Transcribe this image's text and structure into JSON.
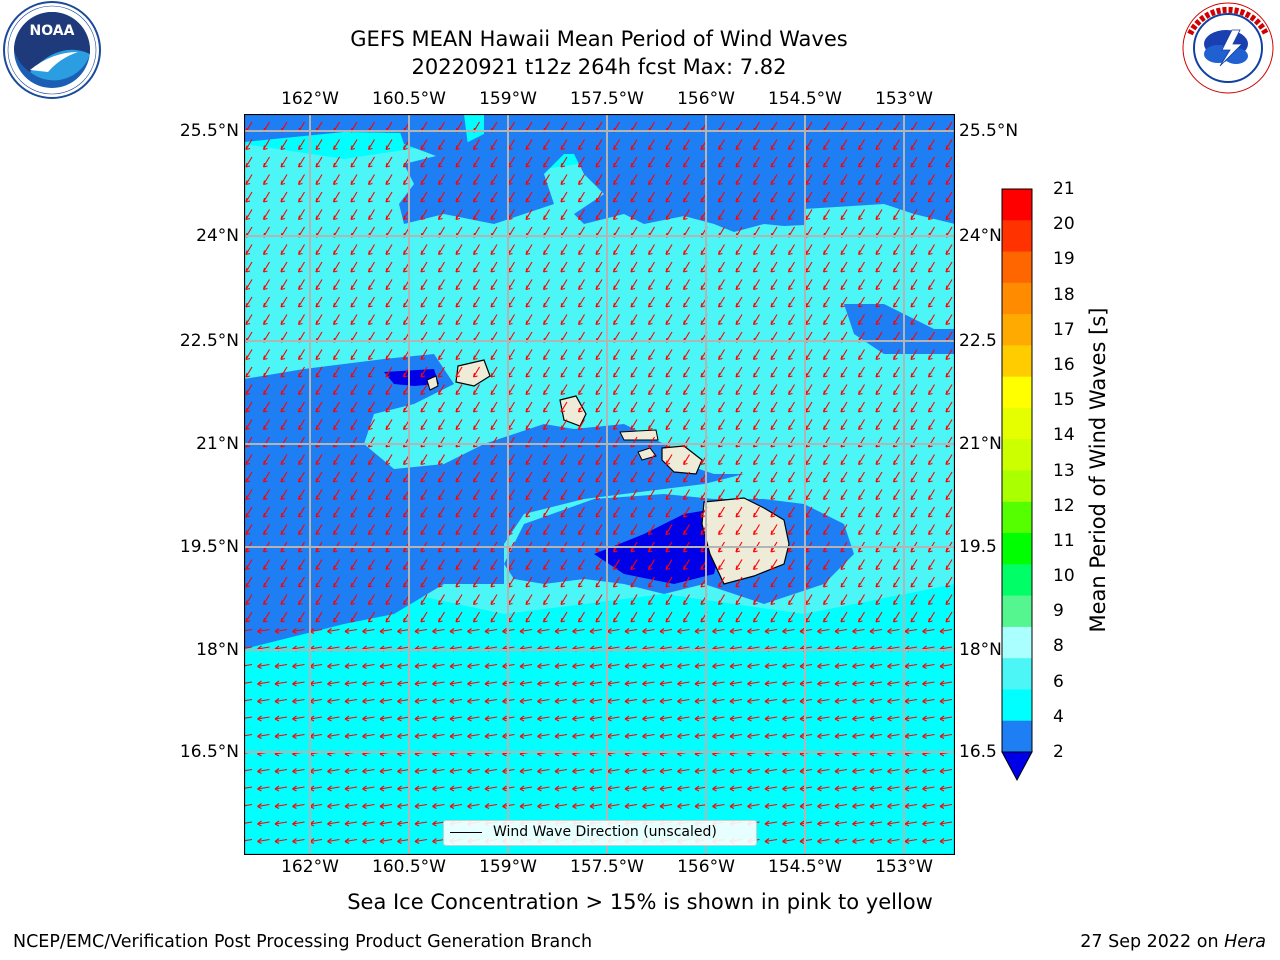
{
  "header": {
    "title_line1": "GEFS MEAN Hawaii Mean Period of Wind Waves",
    "title_line2": "20220921 t12z 264h fcst   Max: 7.82"
  },
  "logos": {
    "left": {
      "name": "NOAA",
      "ring_text": "NATIONAL OCEANIC AND ATMOSPHERIC ADMINISTRATION · U.S. DEPARTMENT OF COMMERCE"
    },
    "right": {
      "name": "NATIONAL WEATHER SERVICE"
    }
  },
  "map": {
    "lon_labels": [
      "162°W",
      "160.5°W",
      "159°W",
      "157.5°W",
      "156°W",
      "154.5°W",
      "153°W"
    ],
    "lat_labels": [
      "25.5°N",
      "24°N",
      "22.5°N",
      "21°N",
      "19.5°N",
      "18°N",
      "16.5°N"
    ],
    "lat_labels_right": [
      "25.5°N",
      "24°N",
      "22.5",
      "21°N",
      "19.5",
      "18°N",
      "16.5"
    ],
    "legend_label": "Wind Wave Direction (unscaled)",
    "colors": {
      "period_2_4": "#1e7ff5",
      "period_4_6": "#00ffff",
      "period_6_8": "#4df6f6",
      "below_2": "#0000e8",
      "land": "#eeebd9",
      "arrow": "#ff0000",
      "grid": "#b4b4b4"
    }
  },
  "colorbar": {
    "label": "Mean Period of Wind Waves [s]",
    "ticks": [
      "21",
      "20",
      "19",
      "18",
      "17",
      "16",
      "15",
      "14",
      "13",
      "12",
      "11",
      "10",
      "9",
      "8",
      "6",
      "4",
      "2"
    ],
    "colors": [
      "#ff0000",
      "#ff3200",
      "#ff6600",
      "#ff8c00",
      "#ffaa00",
      "#ffcc00",
      "#ffff00",
      "#e6ff00",
      "#ccff00",
      "#aaff00",
      "#55ff00",
      "#00ff00",
      "#00ff66",
      "#55f590",
      "#aaffff",
      "#4df6f6",
      "#00ffff",
      "#1e7ff5"
    ],
    "under_color": "#0000e8"
  },
  "notes": {
    "sea_ice": "Sea Ice Concentration > 15% is shown in pink to yellow"
  },
  "footer": {
    "left": "NCEP/EMC/Verification Post Processing Product Generation Branch",
    "right_date": "27 Sep 2022 on",
    "right_host": "Hera"
  }
}
